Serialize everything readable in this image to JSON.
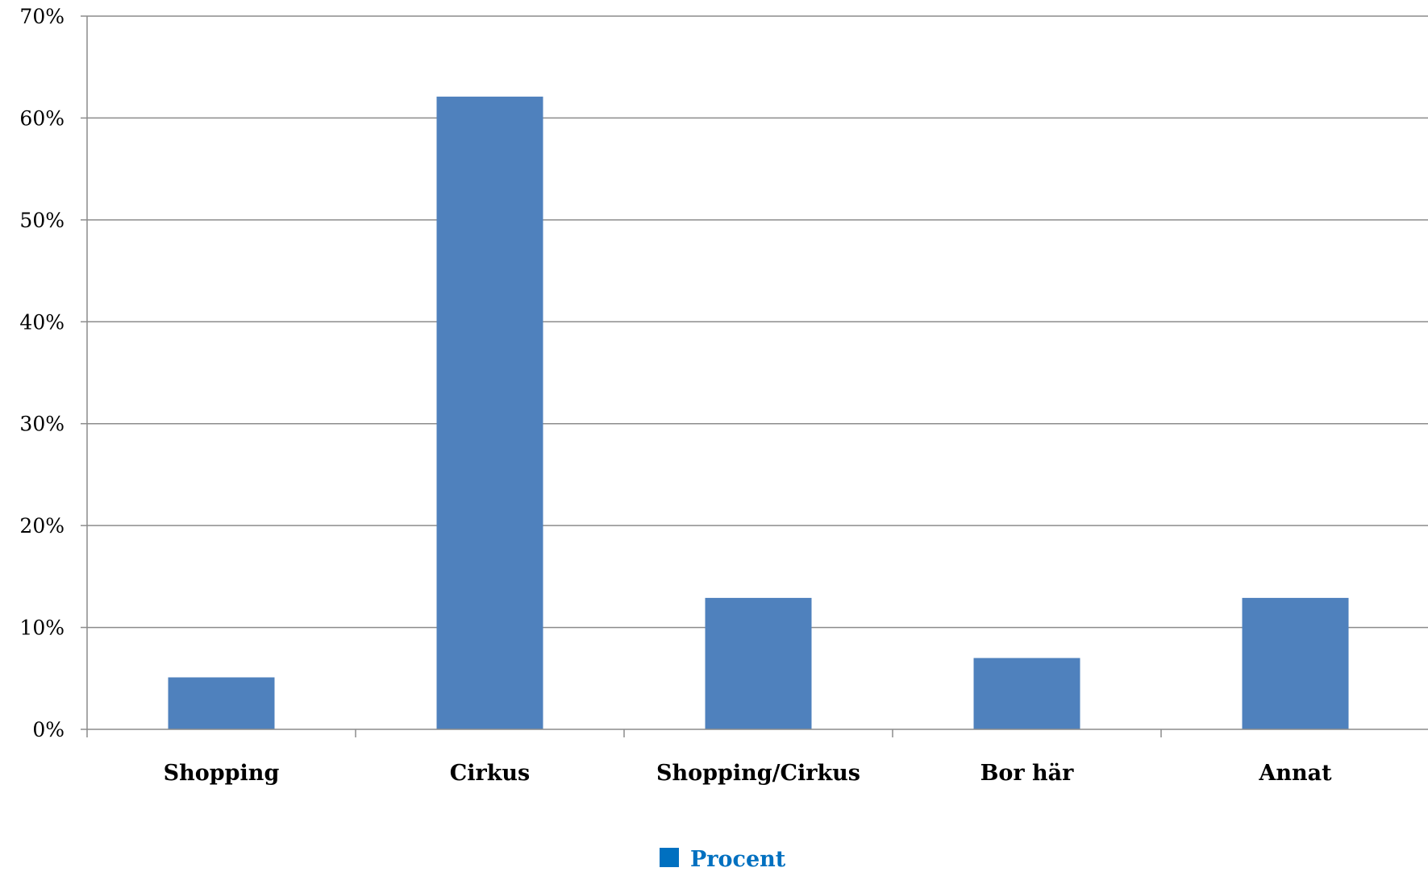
{
  "chart_data": {
    "type": "bar",
    "categories": [
      "Shopping",
      "Cirkus",
      "Shopping/Cirkus",
      "Bor här",
      "Annat"
    ],
    "series": [
      {
        "name": "Procent",
        "values": [
          5.1,
          62.1,
          12.9,
          7.0,
          12.9
        ]
      }
    ],
    "title": "",
    "xlabel": "",
    "ylabel": "",
    "ylim": [
      0,
      70
    ],
    "yticks": [
      0,
      10,
      20,
      30,
      40,
      50,
      60,
      70
    ],
    "ytick_format": "percent",
    "grid": true,
    "legend": "bottom-center",
    "colors": {
      "bar": "#4f81bd",
      "legend_swatch": "#0070c0",
      "legend_text": "#0070c0",
      "gridline": "#8c8c8c",
      "axis": "#8c8c8c"
    }
  }
}
